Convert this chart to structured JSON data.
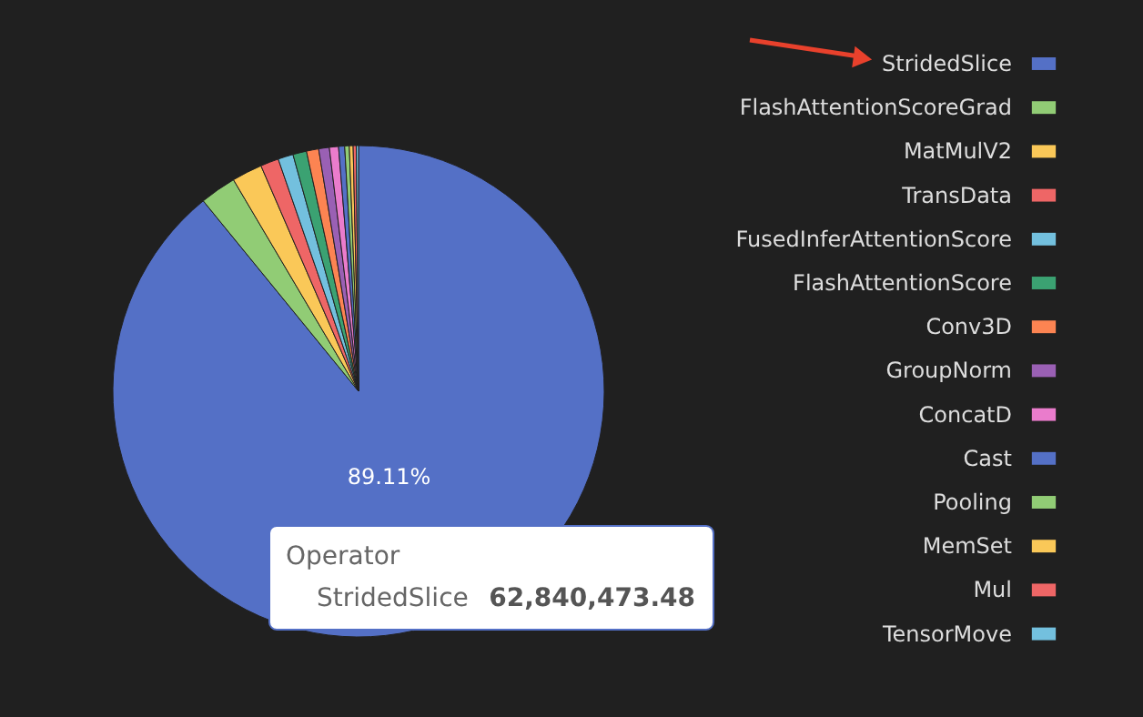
{
  "chart_data": {
    "type": "pie",
    "categories": [
      "StridedSlice",
      "FlashAttentionScoreGrad",
      "MatMulV2",
      "TransData",
      "FusedInferAttentionScore",
      "FlashAttentionScore",
      "Conv3D",
      "GroupNorm",
      "ConcatD",
      "Cast",
      "Pooling",
      "MemSet",
      "Mul",
      "TensorMove"
    ],
    "values": [
      89.11,
      2.39,
      2.0,
      1.2,
      1.0,
      0.9,
      0.8,
      0.7,
      0.6,
      0.4,
      0.3,
      0.25,
      0.2,
      0.15
    ],
    "colors": [
      "#5470c6",
      "#91cc75",
      "#fac858",
      "#ee6666",
      "#73c0de",
      "#3ba272",
      "#fc8452",
      "#9a60b4",
      "#ea7ccc",
      "#5470c6",
      "#91cc75",
      "#fac858",
      "#ee6666",
      "#73c0de"
    ],
    "value_labels": [
      "89.11%",
      null,
      null,
      null,
      null,
      null,
      null,
      null,
      null,
      null,
      null,
      null,
      null,
      null
    ],
    "legend": "right",
    "annotations": [
      "Operator",
      "StridedSlice",
      "62,840,473.48"
    ]
  }
}
